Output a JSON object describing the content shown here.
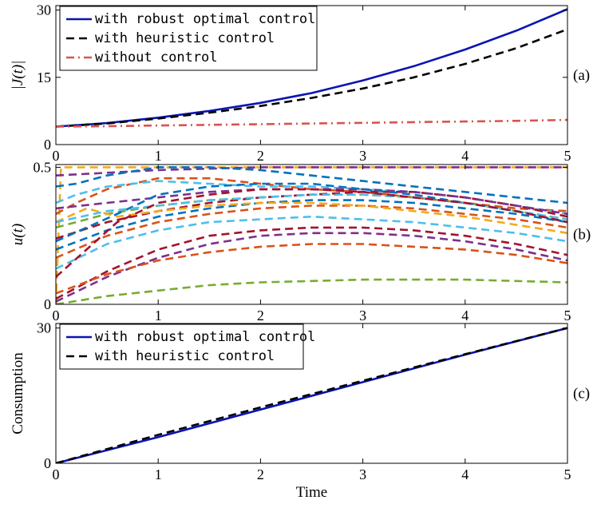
{
  "chart_data": [
    {
      "type": "line",
      "panel_label": "(a)",
      "ylabel": "|J(t)|",
      "xlabel": "",
      "xlim": [
        0,
        5
      ],
      "ylim": [
        0,
        31
      ],
      "xticks": [
        "0",
        "1",
        "2",
        "3",
        "4",
        "5"
      ],
      "yticks": [
        0,
        15,
        30
      ],
      "legend": "top-left",
      "series": [
        {
          "name": "with robust optimal control",
          "color": "#0a14b4",
          "dash": "solid",
          "x": [
            0,
            0.5,
            1,
            1.5,
            2,
            2.5,
            3,
            3.5,
            4,
            4.5,
            5
          ],
          "y": [
            4.0,
            4.8,
            6.0,
            7.5,
            9.3,
            11.5,
            14.3,
            17.5,
            21.2,
            25.4,
            30.2
          ]
        },
        {
          "name": "with heuristic control",
          "color": "#000000",
          "dash": "dashed",
          "x": [
            0,
            0.5,
            1,
            1.5,
            2,
            2.5,
            3,
            3.5,
            4,
            4.5,
            5
          ],
          "y": [
            4.0,
            4.7,
            5.8,
            7.1,
            8.6,
            10.4,
            12.5,
            15.0,
            18.0,
            21.5,
            25.7
          ]
        },
        {
          "name": "without control",
          "color": "#d9534f",
          "dash": "dashdot",
          "x": [
            0,
            0.5,
            1,
            1.5,
            2,
            2.5,
            3,
            3.5,
            4,
            4.5,
            5
          ],
          "y": [
            4.0,
            4.1,
            4.25,
            4.4,
            4.55,
            4.7,
            4.85,
            5.0,
            5.15,
            5.3,
            5.5
          ]
        }
      ]
    },
    {
      "type": "line",
      "panel_label": "(b)",
      "ylabel": "u(t)",
      "xlabel": "",
      "xlim": [
        0,
        5
      ],
      "ylim": [
        0,
        0.51
      ],
      "xticks": [
        "0",
        "1",
        "2",
        "3",
        "4",
        "5"
      ],
      "yticks": [
        0,
        0.5
      ],
      "legend": "none",
      "series": [
        {
          "color": "#f2a91e",
          "x": [
            0,
            0.05,
            5
          ],
          "y": [
            0,
            0.5,
            0.5
          ]
        },
        {
          "color": "#7e2f8e",
          "x": [
            0,
            1,
            2,
            3,
            4,
            5
          ],
          "y": [
            0.47,
            0.49,
            0.5,
            0.5,
            0.5,
            0.5
          ]
        },
        {
          "color": "#0072bd",
          "x": [
            0,
            0.2,
            0.5,
            1,
            1.5,
            2,
            2.5,
            3,
            3.5,
            4,
            4.5,
            5
          ],
          "y": [
            0.43,
            0.44,
            0.47,
            0.5,
            0.5,
            0.49,
            0.47,
            0.45,
            0.43,
            0.41,
            0.39,
            0.37
          ]
        },
        {
          "color": "#d95319",
          "x": [
            0,
            0.2,
            0.5,
            1,
            1.5,
            2,
            2.5,
            3,
            3.5,
            4,
            4.5,
            5
          ],
          "y": [
            0.33,
            0.37,
            0.42,
            0.46,
            0.46,
            0.44,
            0.42,
            0.41,
            0.39,
            0.37,
            0.35,
            0.34
          ]
        },
        {
          "color": "#4dbeee",
          "x": [
            0,
            0.2,
            0.5,
            1,
            1.5,
            2,
            2.5,
            3,
            3.5,
            4,
            4.5,
            5
          ],
          "y": [
            0.37,
            0.4,
            0.43,
            0.45,
            0.44,
            0.43,
            0.43,
            0.42,
            0.41,
            0.39,
            0.36,
            0.33
          ]
        },
        {
          "color": "#77ac30",
          "x": [
            0,
            0.5,
            1,
            1.5,
            2,
            2.5,
            3,
            3.5,
            4,
            4.5,
            5
          ],
          "y": [
            0.28,
            0.33,
            0.36,
            0.38,
            0.39,
            0.4,
            0.4,
            0.39,
            0.37,
            0.34,
            0.31
          ]
        },
        {
          "color": "#a2142f",
          "x": [
            0,
            0.5,
            1,
            1.5,
            2,
            2.5,
            3,
            3.5,
            4,
            4.5,
            5
          ],
          "y": [
            0.24,
            0.3,
            0.34,
            0.37,
            0.39,
            0.4,
            0.41,
            0.41,
            0.39,
            0.36,
            0.32
          ]
        },
        {
          "color": "#7e2f8e",
          "x": [
            0,
            0.5,
            1,
            1.5,
            2,
            2.5,
            3,
            3.5,
            4,
            4.5,
            5
          ],
          "y": [
            0.35,
            0.37,
            0.39,
            0.41,
            0.42,
            0.42,
            0.42,
            0.41,
            0.39,
            0.36,
            0.33
          ]
        },
        {
          "color": "#0072bd",
          "x": [
            0,
            0.5,
            1,
            1.5,
            2,
            2.5,
            3,
            3.5,
            4,
            4.5,
            5
          ],
          "y": [
            0.2,
            0.27,
            0.32,
            0.35,
            0.37,
            0.38,
            0.38,
            0.37,
            0.35,
            0.33,
            0.3
          ]
        },
        {
          "color": "#d95319",
          "x": [
            0,
            0.5,
            1,
            1.5,
            2,
            2.5,
            3,
            3.5,
            4,
            4.5,
            5
          ],
          "y": [
            0.17,
            0.25,
            0.3,
            0.33,
            0.35,
            0.36,
            0.36,
            0.35,
            0.33,
            0.31,
            0.28
          ]
        },
        {
          "color": "#f2a91e",
          "x": [
            0,
            0.3,
            0.6,
            1,
            1.5,
            2,
            2.5,
            3,
            3.5,
            4,
            4.5,
            5
          ],
          "y": [
            0.3,
            0.35,
            0.32,
            0.34,
            0.36,
            0.37,
            0.37,
            0.36,
            0.34,
            0.32,
            0.29,
            0.26
          ]
        },
        {
          "color": "#4dbeee",
          "x": [
            0,
            0.5,
            1,
            1.5,
            2,
            2.5,
            3,
            3.5,
            4,
            4.5,
            5
          ],
          "y": [
            0.13,
            0.22,
            0.27,
            0.3,
            0.31,
            0.32,
            0.31,
            0.3,
            0.28,
            0.26,
            0.23
          ]
        },
        {
          "color": "#a2142f",
          "x": [
            0,
            0.5,
            1,
            1.5,
            2,
            2.5,
            3,
            3.5,
            4,
            4.5,
            5
          ],
          "y": [
            0.02,
            0.12,
            0.2,
            0.25,
            0.27,
            0.28,
            0.28,
            0.27,
            0.25,
            0.22,
            0.18
          ]
        },
        {
          "color": "#7e2f8e",
          "x": [
            0,
            0.5,
            1,
            1.5,
            2,
            2.5,
            3,
            3.5,
            4,
            4.5,
            5
          ],
          "y": [
            0.01,
            0.1,
            0.17,
            0.22,
            0.25,
            0.26,
            0.26,
            0.25,
            0.23,
            0.2,
            0.16
          ]
        },
        {
          "color": "#d95319",
          "x": [
            0,
            0.5,
            1,
            1.5,
            2,
            2.5,
            3,
            3.5,
            4,
            4.5,
            5
          ],
          "y": [
            0.04,
            0.11,
            0.16,
            0.19,
            0.21,
            0.22,
            0.22,
            0.21,
            0.2,
            0.18,
            0.15
          ]
        },
        {
          "color": "#0072bd",
          "x": [
            0,
            0.3,
            0.6,
            1,
            1.5,
            2,
            2.5,
            3,
            3.5,
            4,
            4.5,
            5
          ],
          "y": [
            0.23,
            0.28,
            0.33,
            0.4,
            0.43,
            0.44,
            0.44,
            0.42,
            0.4,
            0.37,
            0.34,
            0.3
          ]
        },
        {
          "color": "#77ac30",
          "x": [
            0,
            0.5,
            1,
            1.5,
            2,
            2.5,
            3,
            3.5,
            4,
            4.5,
            5
          ],
          "y": [
            0.0,
            0.03,
            0.05,
            0.07,
            0.08,
            0.085,
            0.09,
            0.09,
            0.09,
            0.085,
            0.08
          ]
        },
        {
          "color": "#4dbeee",
          "x": [
            0,
            0.5,
            1,
            1.5,
            2,
            2.5,
            3,
            3.5,
            4,
            4.5,
            5
          ],
          "y": [
            0.3,
            0.34,
            0.36,
            0.38,
            0.39,
            0.4,
            0.4,
            0.39,
            0.37,
            0.34,
            0.31
          ]
        },
        {
          "color": "#a2142f",
          "x": [
            0,
            0.3,
            0.6,
            1,
            1.5,
            2,
            2.5,
            3,
            3.5,
            4,
            4.5,
            5
          ],
          "y": [
            0.1,
            0.2,
            0.3,
            0.37,
            0.4,
            0.42,
            0.42,
            0.41,
            0.39,
            0.37,
            0.34,
            0.3
          ]
        }
      ]
    },
    {
      "type": "line",
      "panel_label": "(c)",
      "ylabel": "Consumption",
      "xlabel": "Time",
      "xlim": [
        0,
        5
      ],
      "ylim": [
        0,
        31
      ],
      "xticks": [
        "0",
        "1",
        "2",
        "3",
        "4",
        "5"
      ],
      "yticks": [
        0,
        30
      ],
      "legend": "top-left",
      "series": [
        {
          "name": "with robust optimal control",
          "color": "#0a14b4",
          "dash": "solid",
          "x": [
            0,
            1,
            2,
            3,
            4,
            5
          ],
          "y": [
            0,
            5.8,
            11.9,
            18.0,
            24.1,
            30.0
          ]
        },
        {
          "name": "with heuristic control",
          "color": "#000000",
          "dash": "dashed",
          "x": [
            0,
            1,
            2,
            3,
            4,
            5
          ],
          "y": [
            0,
            6.3,
            12.4,
            18.3,
            24.2,
            30.0
          ]
        }
      ]
    }
  ]
}
